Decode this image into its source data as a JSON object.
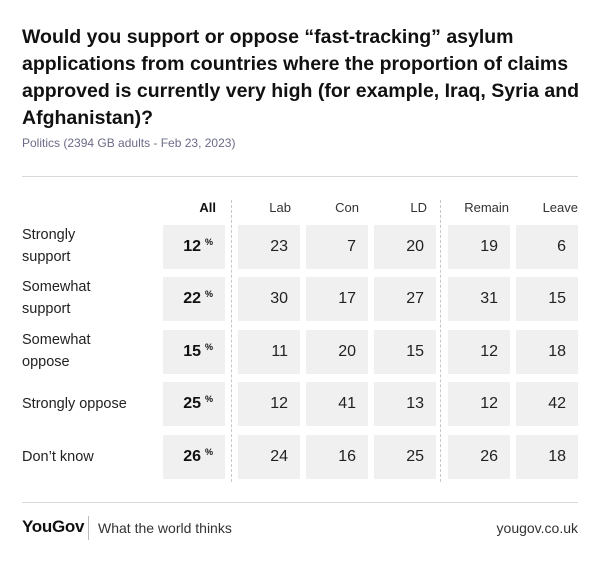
{
  "title": "Would you support or oppose “fast-tracking” asylum applications from countries where the proportion of claims approved is currently very high (for example, Iraq, Syria and Afghanistan)?",
  "subtitle": "Politics (2394 GB adults - Feb 23, 2023)",
  "chart_data": {
    "type": "table",
    "columns": [
      "All",
      "Lab",
      "Con",
      "LD",
      "Remain",
      "Leave"
    ],
    "rows": [
      {
        "label": "Strongly support",
        "values": [
          12,
          23,
          7,
          20,
          19,
          6
        ]
      },
      {
        "label": "Somewhat support",
        "values": [
          22,
          30,
          17,
          27,
          31,
          15
        ]
      },
      {
        "label": "Somewhat oppose",
        "values": [
          15,
          11,
          20,
          15,
          12,
          18
        ]
      },
      {
        "label": "Strongly oppose",
        "values": [
          25,
          12,
          41,
          13,
          12,
          42
        ]
      },
      {
        "label": "Don’t know",
        "values": [
          26,
          24,
          16,
          25,
          26,
          18
        ]
      }
    ],
    "unit_symbol": "%"
  },
  "footer": {
    "logo": "YouGov",
    "tagline": "What the world thinks",
    "site": "yougov.co.uk"
  }
}
